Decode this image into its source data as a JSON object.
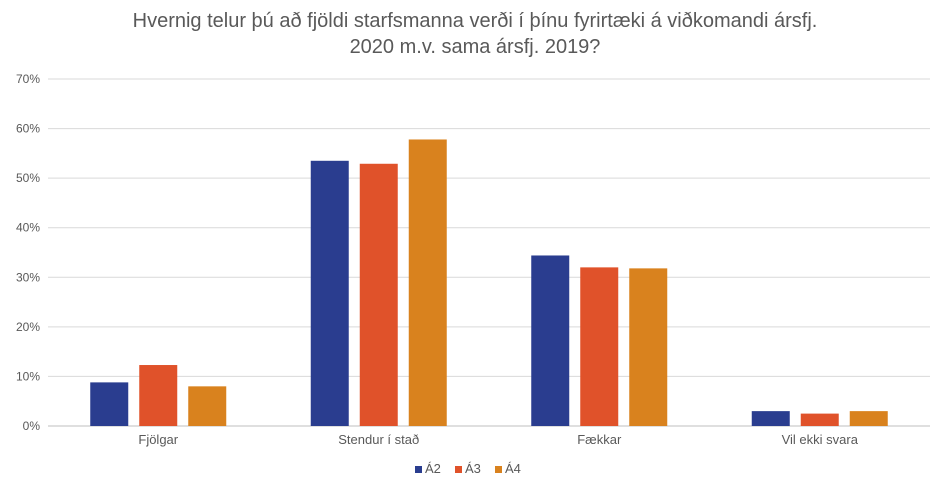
{
  "chart_data": {
    "type": "bar",
    "title_line1": "Hvernig telur þú að fjöldi starfsmanna verði í þínu fyrirtæki á viðkomandi ársfj.",
    "title_line2": "2020 m.v. sama ársfj. 2019?",
    "xlabel": "",
    "ylabel": "",
    "ylim": [
      0,
      0.7
    ],
    "yticks": [
      "0%",
      "10%",
      "20%",
      "30%",
      "40%",
      "50%",
      "60%",
      "70%"
    ],
    "categories": [
      "Fjölgar",
      "Stendur í stað",
      "Fækkar",
      "Vil ekki svara"
    ],
    "series": [
      {
        "name": "Á2",
        "color": "#2a3d8f",
        "values": [
          0.088,
          0.535,
          0.344,
          0.03
        ]
      },
      {
        "name": "Á3",
        "color": "#e0522a",
        "values": [
          0.123,
          0.529,
          0.32,
          0.025
        ]
      },
      {
        "name": "Á4",
        "color": "#d9821e",
        "values": [
          0.08,
          0.578,
          0.318,
          0.03
        ]
      }
    ],
    "grid": true,
    "legend_position": "bottom"
  }
}
